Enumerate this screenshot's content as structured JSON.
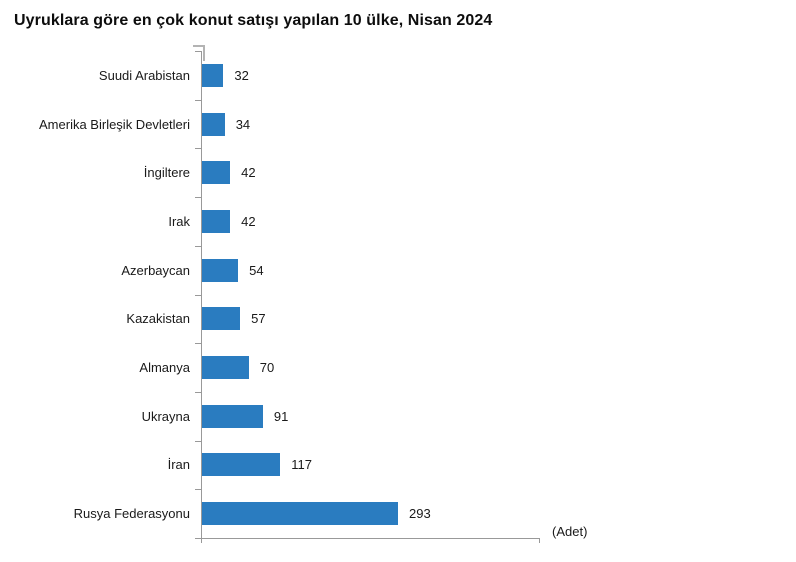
{
  "title": "Uyruklara göre en çok konut satışı yapılan 10 ülke, Nisan 2024",
  "unit_label": "(Adet)",
  "colors": {
    "bar": "#2A7CC0",
    "axis": "#999999",
    "title_text": "#0d0d0d",
    "label_text": "#1a1a1a"
  },
  "chart_data": {
    "type": "bar",
    "orientation": "horizontal",
    "title": "Uyruklara göre en çok konut satışı yapılan 10 ülke, Nisan 2024",
    "categories": [
      "Suudi Arabistan",
      "Amerika Birleşik Devletleri",
      "İngiltere",
      "Irak",
      "Azerbaycan",
      "Kazakistan",
      "Almanya",
      "Ukrayna",
      "İran",
      "Rusya Federasyonu"
    ],
    "values": [
      32,
      34,
      42,
      42,
      54,
      57,
      70,
      91,
      117,
      293
    ],
    "value_labels": [
      "32",
      "34",
      "42",
      "42",
      "54",
      "57",
      "70",
      "91",
      "117",
      "293"
    ],
    "xlabel": "(Adet)",
    "ylabel": "",
    "xlim": [
      0,
      505
    ],
    "grid": false,
    "legend": false,
    "data_labels": true,
    "bar_color": "#2A7CC0"
  }
}
